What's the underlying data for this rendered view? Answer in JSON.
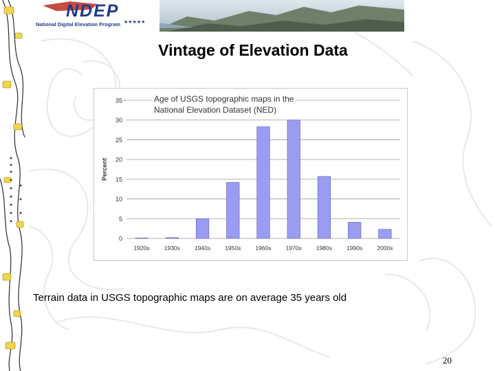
{
  "banner": {
    "logo_text": "NDEP",
    "program_name": "National Digital Elevation Program"
  },
  "slide": {
    "title": "Vintage of Elevation Data",
    "caption": "Terrain data in USGS topographic maps are on average 35 years old",
    "page_number": "20"
  },
  "colors": {
    "bar_fill": "#9a9cf2",
    "bar_stroke": "#5a5cc0",
    "grid": "#9a9a9a",
    "banner_blue": "#1f3a8a",
    "banner_red": "#c0392b"
  },
  "chart_data": {
    "type": "bar",
    "title": "Age of USGS topographic maps in the National Elevation Dataset (NED)",
    "xlabel": "",
    "ylabel": "Percent",
    "categories": [
      "1920s",
      "1930s",
      "1940s",
      "1950s",
      "1960s",
      "1970s",
      "1980s",
      "1990s",
      "2000s"
    ],
    "values": [
      0.1,
      0.2,
      5,
      14.2,
      28.3,
      30,
      15.7,
      4.1,
      2.3
    ],
    "ylim": [
      0,
      35
    ],
    "yticks": [
      "0",
      "5",
      "10",
      "15",
      "20",
      "25",
      "30",
      "35"
    ],
    "grid": true,
    "legend": "none"
  }
}
